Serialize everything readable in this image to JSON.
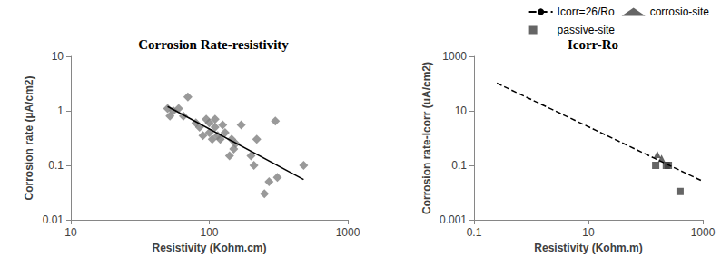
{
  "chart_data": [
    {
      "type": "scatter",
      "title": "Corrosion Rate-resistivity",
      "x_label": "Resistivity (Kohm.cm)",
      "y_label": "Corrosion rate (µA/cm2)",
      "log": true,
      "grid": false,
      "xlim": [
        10,
        1000
      ],
      "ylim": [
        0.01,
        10
      ],
      "xticks": [
        10,
        100,
        1000
      ],
      "yticks": [
        0.01,
        0.1,
        1,
        10
      ],
      "series": [
        {
          "type": "scatter",
          "marker": "diamond",
          "color": "#808080",
          "x": [
            50,
            52,
            55,
            60,
            65,
            70,
            80,
            85,
            90,
            95,
            100,
            100,
            105,
            110,
            110,
            115,
            120,
            125,
            130,
            140,
            145,
            150,
            155,
            170,
            200,
            210,
            220,
            250,
            270,
            300,
            310,
            480
          ],
          "values": [
            1.1,
            0.8,
            1.0,
            1.1,
            0.8,
            1.8,
            0.6,
            0.5,
            0.35,
            0.7,
            0.4,
            0.6,
            0.3,
            0.7,
            0.5,
            0.35,
            0.3,
            0.55,
            0.4,
            0.15,
            0.3,
            0.2,
            0.25,
            0.55,
            0.15,
            0.1,
            0.3,
            0.03,
            0.05,
            0.65,
            0.06,
            0.1
          ]
        },
        {
          "type": "line",
          "line_style": "solid",
          "color": "#000000",
          "x": [
            50,
            480
          ],
          "values": [
            1.2,
            0.055
          ]
        }
      ]
    },
    {
      "type": "scatter",
      "title": "Icorr-Ro",
      "x_label": "Resistivity (Kohm.m)",
      "y_label": "Corrosion rate-Icorr (uA/cm2)",
      "log": true,
      "grid": false,
      "legend": "top-right",
      "xlim": [
        0.1,
        1000
      ],
      "ylim": [
        0.001,
        1000
      ],
      "xticks": [
        0.1,
        10,
        1000
      ],
      "yticks": [
        0.001,
        0.1,
        10,
        1000
      ],
      "series": [
        {
          "name": "Icorr=26/Ro",
          "type": "line",
          "line_style": "dashed",
          "color": "#000000",
          "x": [
            0.25,
            1000
          ],
          "values": [
            104,
            0.026
          ]
        },
        {
          "name": "corrosio-site",
          "type": "scatter",
          "marker": "triangle",
          "color": "#3f3f3f",
          "x": [
            160,
            190
          ],
          "values": [
            0.25,
            0.18
          ]
        },
        {
          "name": "passive-site",
          "type": "scatter",
          "marker": "square",
          "color": "#3f3f3f",
          "x": [
            150,
            230,
            250,
            400
          ],
          "values": [
            0.1,
            0.1,
            0.1,
            0.011
          ]
        }
      ]
    }
  ]
}
